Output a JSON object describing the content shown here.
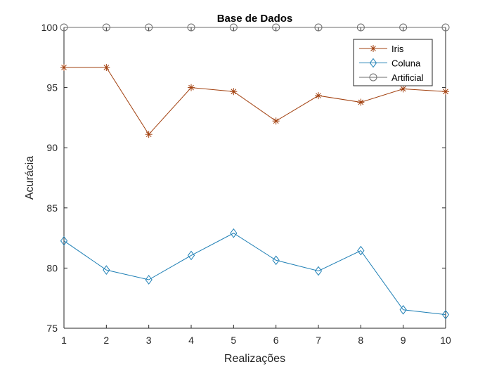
{
  "chart_data": {
    "type": "line",
    "title": "Base de Dados",
    "xlabel": "Realizações",
    "ylabel": "Acurácia",
    "x": [
      1,
      2,
      3,
      4,
      5,
      6,
      7,
      8,
      9,
      10
    ],
    "xlim": [
      1,
      10
    ],
    "ylim": [
      75,
      100
    ],
    "xticks": [
      "1",
      "2",
      "3",
      "4",
      "5",
      "6",
      "7",
      "8",
      "9",
      "10"
    ],
    "yticks": [
      "75",
      "80",
      "85",
      "90",
      "95",
      "100"
    ],
    "grid": false,
    "legend_position": "top-right",
    "series": [
      {
        "name": "Iris",
        "marker": "asterisk",
        "color": "#A2400F",
        "values": [
          96.67,
          96.67,
          91.11,
          95.0,
          94.67,
          92.22,
          94.33,
          93.78,
          94.89,
          94.67
        ]
      },
      {
        "name": "Coluna",
        "marker": "diamond",
        "color": "#1E7FB5",
        "values": [
          82.26,
          79.84,
          79.03,
          81.05,
          82.9,
          80.65,
          79.76,
          81.45,
          76.53,
          76.13
        ]
      },
      {
        "name": "Artificial",
        "marker": "circle",
        "color": "#6E6E6E",
        "values": [
          100,
          100,
          100,
          100,
          100,
          100,
          100,
          100,
          100,
          100
        ]
      }
    ]
  }
}
